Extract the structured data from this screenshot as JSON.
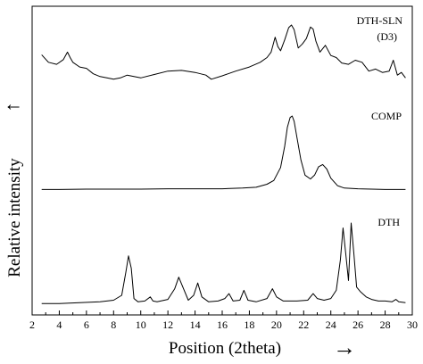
{
  "chart_data": {
    "type": "line",
    "title": "",
    "xlabel": "Position (2theta)",
    "ylabel": "Relative intensity",
    "xlim": [
      2,
      30
    ],
    "x_ticks": [
      2,
      4,
      6,
      8,
      10,
      12,
      14,
      16,
      18,
      20,
      22,
      24,
      26,
      28,
      30
    ],
    "grid": false,
    "legend": "none",
    "line_color": "#000000",
    "series": [
      {
        "name": "DTH-SLN",
        "name_line2": "(D3)",
        "x": [
          2.7,
          3.2,
          3.8,
          4.3,
          4.6,
          4.8,
          5.0,
          5.5,
          6.0,
          6.5,
          7.0,
          7.5,
          8.0,
          8.5,
          9.0,
          9.5,
          10.0,
          11.0,
          12.0,
          13.0,
          14.0,
          14.8,
          15.2,
          16.0,
          17.0,
          18.0,
          18.8,
          19.3,
          19.6,
          19.9,
          20.1,
          20.3,
          20.6,
          20.9,
          21.1,
          21.3,
          21.6,
          21.9,
          22.2,
          22.5,
          22.7,
          22.9,
          23.2,
          23.6,
          24.0,
          24.4,
          24.8,
          25.3,
          25.8,
          26.3,
          26.8,
          27.3,
          27.8,
          28.3,
          28.6,
          28.9,
          29.2,
          29.5
        ],
        "y": [
          0.56,
          0.45,
          0.42,
          0.49,
          0.6,
          0.52,
          0.45,
          0.38,
          0.36,
          0.28,
          0.24,
          0.22,
          0.2,
          0.22,
          0.26,
          0.24,
          0.22,
          0.27,
          0.32,
          0.33,
          0.3,
          0.26,
          0.2,
          0.25,
          0.32,
          0.38,
          0.45,
          0.52,
          0.6,
          0.82,
          0.68,
          0.62,
          0.78,
          0.96,
          1.0,
          0.93,
          0.66,
          0.72,
          0.8,
          0.97,
          0.94,
          0.76,
          0.6,
          0.7,
          0.55,
          0.52,
          0.44,
          0.42,
          0.48,
          0.45,
          0.32,
          0.35,
          0.3,
          0.32,
          0.48,
          0.26,
          0.3,
          0.22
        ]
      },
      {
        "name": "COMP",
        "x": [
          2.7,
          4.0,
          6.0,
          8.0,
          10.0,
          12.0,
          14.0,
          16.0,
          17.5,
          18.5,
          19.3,
          19.8,
          20.3,
          20.6,
          20.8,
          21.0,
          21.15,
          21.3,
          21.5,
          21.8,
          22.1,
          22.5,
          22.8,
          23.1,
          23.4,
          23.7,
          24.0,
          24.5,
          25.0,
          26.0,
          27.0,
          28.0,
          29.5
        ],
        "y": [
          0.03,
          0.03,
          0.035,
          0.035,
          0.035,
          0.04,
          0.04,
          0.04,
          0.05,
          0.06,
          0.1,
          0.15,
          0.32,
          0.6,
          0.85,
          0.98,
          1.0,
          0.93,
          0.72,
          0.42,
          0.22,
          0.17,
          0.22,
          0.33,
          0.36,
          0.3,
          0.18,
          0.08,
          0.05,
          0.04,
          0.035,
          0.03,
          0.03
        ]
      },
      {
        "name": "DTH",
        "x": [
          2.7,
          4.0,
          5.5,
          7.0,
          8.0,
          8.6,
          8.9,
          9.1,
          9.3,
          9.5,
          9.8,
          10.3,
          10.7,
          10.9,
          11.2,
          12.0,
          12.5,
          12.8,
          13.1,
          13.5,
          13.9,
          14.2,
          14.5,
          15.0,
          15.7,
          16.2,
          16.5,
          16.8,
          17.3,
          17.6,
          17.9,
          18.5,
          19.3,
          19.7,
          20.0,
          20.5,
          21.5,
          22.3,
          22.7,
          23.0,
          23.5,
          24.0,
          24.4,
          24.7,
          24.9,
          25.1,
          25.3,
          25.5,
          25.7,
          25.9,
          26.2,
          26.6,
          27.0,
          27.5,
          28.0,
          28.5,
          28.8,
          29.0,
          29.5
        ],
        "y": [
          0.02,
          0.02,
          0.03,
          0.04,
          0.06,
          0.12,
          0.4,
          0.6,
          0.45,
          0.08,
          0.04,
          0.05,
          0.1,
          0.05,
          0.04,
          0.07,
          0.2,
          0.34,
          0.22,
          0.06,
          0.12,
          0.27,
          0.1,
          0.04,
          0.05,
          0.08,
          0.14,
          0.05,
          0.06,
          0.18,
          0.06,
          0.04,
          0.08,
          0.2,
          0.1,
          0.05,
          0.05,
          0.06,
          0.14,
          0.08,
          0.06,
          0.08,
          0.18,
          0.55,
          0.94,
          0.62,
          0.3,
          1.0,
          0.62,
          0.22,
          0.16,
          0.1,
          0.07,
          0.05,
          0.05,
          0.04,
          0.07,
          0.04,
          0.03
        ]
      }
    ],
    "y_arrow": "↑",
    "x_arrow": "→"
  }
}
